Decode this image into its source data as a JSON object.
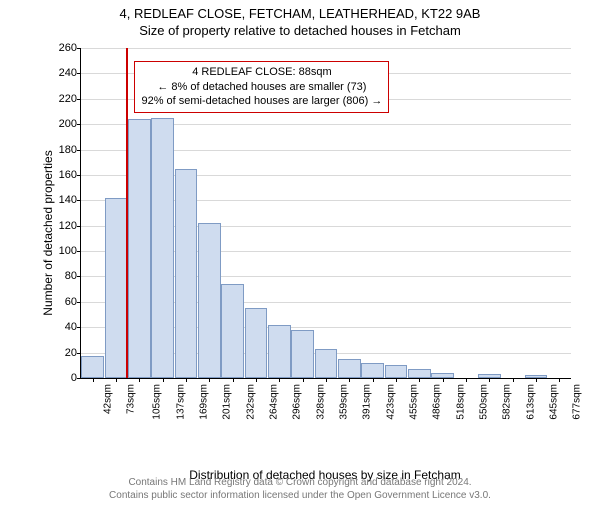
{
  "title": "4, REDLEAF CLOSE, FETCHAM, LEATHERHEAD, KT22 9AB",
  "subtitle": "Size of property relative to detached houses in Fetcham",
  "chart": {
    "type": "bar",
    "xlabel": "Distribution of detached houses by size in Fetcham",
    "ylabel": "Number of detached properties",
    "ylim": [
      0,
      260
    ],
    "ytick_step": 20,
    "bar_color": "#cfdcef",
    "bar_border": "#7f9bc4",
    "grid_color": "#d9d9d9",
    "background_color": "#ffffff",
    "ref_line_color": "#cc0000",
    "ref_value": 88,
    "x_ticks": [
      "42sqm",
      "73sqm",
      "105sqm",
      "137sqm",
      "169sqm",
      "201sqm",
      "232sqm",
      "264sqm",
      "296sqm",
      "328sqm",
      "359sqm",
      "391sqm",
      "423sqm",
      "455sqm",
      "486sqm",
      "518sqm",
      "550sqm",
      "582sqm",
      "613sqm",
      "645sqm",
      "677sqm"
    ],
    "x_values": [
      42,
      73,
      105,
      137,
      169,
      201,
      232,
      264,
      296,
      328,
      359,
      391,
      423,
      455,
      486,
      518,
      550,
      582,
      613,
      645,
      677
    ],
    "bar_values": [
      17,
      142,
      204,
      205,
      165,
      122,
      74,
      55,
      42,
      38,
      23,
      15,
      12,
      10,
      7,
      4,
      0,
      3,
      0,
      2,
      0
    ]
  },
  "annotation": {
    "line1": "4 REDLEAF CLOSE: 88sqm",
    "line2": "← 8% of detached houses are smaller (73)",
    "line3": "92% of semi-detached houses are larger (806) →"
  },
  "footer": {
    "line1": "Contains HM Land Registry data © Crown copyright and database right 2024.",
    "line2": "Contains public sector information licensed under the Open Government Licence v3.0."
  }
}
